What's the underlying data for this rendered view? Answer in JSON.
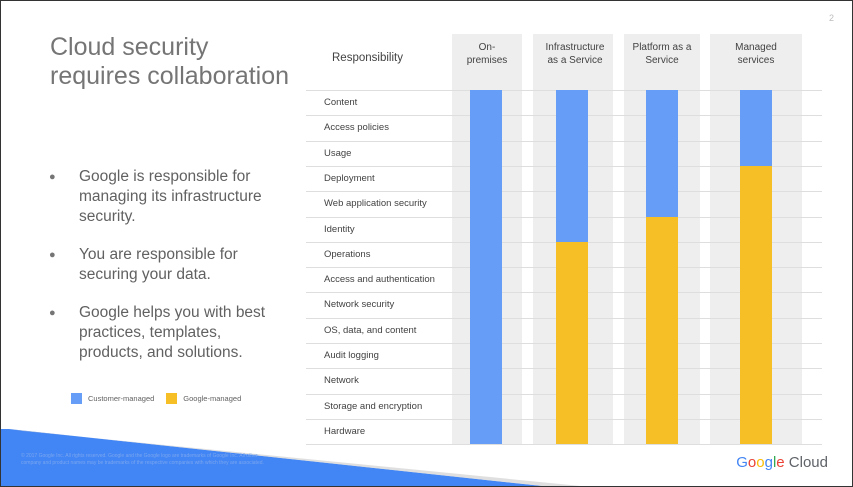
{
  "slide": {
    "page_number": "2",
    "title": "Cloud security requires collaboration",
    "bullets": [
      "Google is responsible for managing its infrastructure security.",
      "You are responsible for securing your data.",
      "Google helps you with best practices, templates, products, and solutions."
    ],
    "legend": [
      {
        "label": "Customer-managed",
        "color": "#669DF6"
      },
      {
        "label": "Google-managed",
        "color": "#F6BF26"
      }
    ],
    "footer_text": "© 2017 Google Inc. All rights reserved. Google and the Google logo are trademarks of Google Inc. All other company and product names may be trademarks of the respective companies with which they are associated.",
    "brand": {
      "google": "Google",
      "cloud": "Cloud"
    }
  },
  "matrix": {
    "header": "Responsibility",
    "columns": [
      "On-premises",
      "Infrastructure as a Service",
      "Platform as a Service",
      "Managed services"
    ],
    "rows": [
      "Content",
      "Access policies",
      "Usage",
      "Deployment",
      "Web application security",
      "Identity",
      "Operations",
      "Access and authentication",
      "Network security",
      "OS, data, and content",
      "Audit logging",
      "Network",
      "Storage and encryption",
      "Hardware"
    ],
    "customer_managed_rows": [
      14,
      6,
      5,
      3
    ],
    "colors": {
      "customer": "#669DF6",
      "google": "#F6BF26"
    }
  }
}
